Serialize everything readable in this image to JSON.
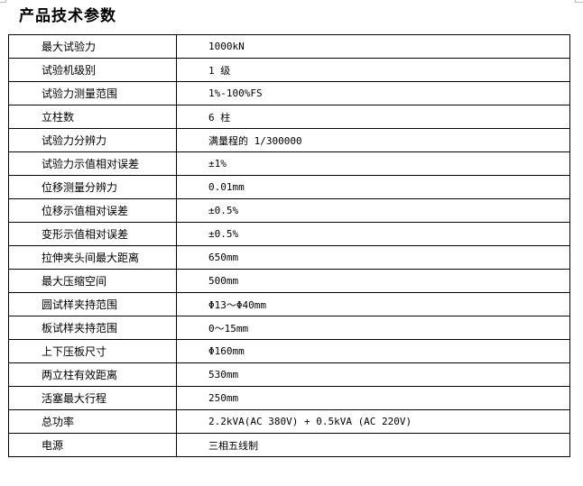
{
  "title": "产品技术参数",
  "rows": [
    {
      "label": "最大试验力",
      "value": "1000kN"
    },
    {
      "label": "试验机级别",
      "value": "1 级"
    },
    {
      "label": "试验力测量范围",
      "value": "1%-100%FS"
    },
    {
      "label": "立柱数",
      "value": "6 柱"
    },
    {
      "label": "试验力分辨力",
      "value": "满量程的 1/300000"
    },
    {
      "label": "试验力示值相对误差",
      "value": "±1%"
    },
    {
      "label": "位移测量分辨力",
      "value": "0.01mm"
    },
    {
      "label": "位移示值相对误差",
      "value": "±0.5%"
    },
    {
      "label": "变形示值相对误差",
      "value": "±0.5%"
    },
    {
      "label": "拉伸夹头间最大距离",
      "value": "650mm"
    },
    {
      "label": "最大压缩空间",
      "value": "500mm"
    },
    {
      "label": "圆试样夹持范围",
      "value": "Φ13～Φ40mm"
    },
    {
      "label": "板试样夹持范围",
      "value": "0～15mm"
    },
    {
      "label": "上下压板尺寸",
      "value": "Φ160mm"
    },
    {
      "label": "两立柱有效距离",
      "value": "530mm"
    },
    {
      "label": "活塞最大行程",
      "value": "250mm"
    },
    {
      "label": "总功率",
      "value": "2.2kVA(AC 380V) + 0.5kVA (AC 220V)"
    },
    {
      "label": "电源",
      "value": "三相五线制"
    }
  ]
}
